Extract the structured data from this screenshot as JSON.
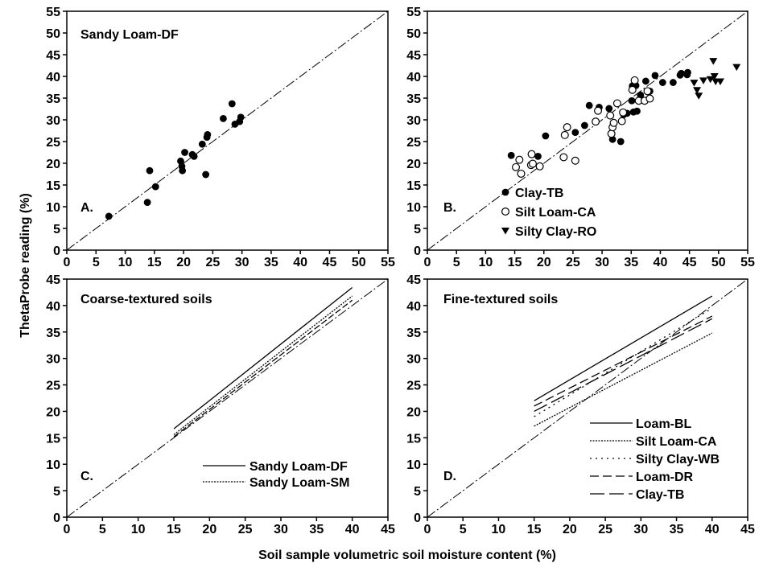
{
  "axis_labels": {
    "y": "ThetaProbe reading (%)",
    "x": "Soil sample volumetric soil moisture content (%)"
  },
  "chart_data": [
    {
      "id": "A",
      "type": "scatter",
      "title": "Sandy Loam-DF",
      "panel_label": "A.",
      "xlim": [
        0,
        55
      ],
      "ylim": [
        0,
        55
      ],
      "xticks": [
        0,
        5,
        10,
        15,
        20,
        25,
        30,
        35,
        40,
        45,
        50,
        55
      ],
      "yticks": [
        0,
        5,
        10,
        15,
        20,
        25,
        30,
        35,
        40,
        45,
        50,
        55
      ],
      "one_to_one_line": true,
      "series": [
        {
          "marker": "filled-circle",
          "points": [
            [
              7.2,
              7.8
            ],
            [
              13.8,
              11.0
            ],
            [
              14.2,
              18.3
            ],
            [
              15.2,
              14.6
            ],
            [
              19.5,
              20.5
            ],
            [
              19.7,
              19.3
            ],
            [
              19.8,
              18.3
            ],
            [
              20.2,
              22.5
            ],
            [
              21.5,
              22.0
            ],
            [
              21.8,
              21.6
            ],
            [
              23.2,
              24.4
            ],
            [
              23.8,
              17.4
            ],
            [
              24.0,
              26.0
            ],
            [
              24.1,
              26.6
            ],
            [
              26.8,
              30.3
            ],
            [
              28.3,
              33.7
            ],
            [
              28.8,
              29.0
            ],
            [
              29.6,
              29.6
            ],
            [
              29.8,
              30.6
            ]
          ]
        }
      ]
    },
    {
      "id": "B",
      "type": "scatter",
      "title": "",
      "panel_label": "B.",
      "xlim": [
        0,
        55
      ],
      "ylim": [
        0,
        55
      ],
      "xticks": [
        0,
        5,
        10,
        15,
        20,
        25,
        30,
        35,
        40,
        45,
        50,
        55
      ],
      "yticks": [
        0,
        5,
        10,
        15,
        20,
        25,
        30,
        35,
        40,
        45,
        50,
        55
      ],
      "one_to_one_line": true,
      "legend_position": "bottom-right",
      "series": [
        {
          "name": "Clay-TB",
          "marker": "filled-circle",
          "points": [
            [
              14.4,
              21.8
            ],
            [
              19.0,
              21.6
            ],
            [
              20.3,
              26.3
            ],
            [
              25.4,
              27.1
            ],
            [
              27.0,
              28.7
            ],
            [
              27.8,
              33.3
            ],
            [
              29.5,
              32.9
            ],
            [
              31.2,
              32.6
            ],
            [
              31.8,
              25.5
            ],
            [
              33.2,
              25.0
            ],
            [
              33.7,
              31.2
            ],
            [
              34.3,
              31.5
            ],
            [
              35.1,
              34.4
            ],
            [
              35.2,
              37.8
            ],
            [
              35.4,
              31.8
            ],
            [
              35.8,
              37.9
            ],
            [
              36.0,
              32.0
            ],
            [
              36.6,
              35.7
            ],
            [
              37.5,
              38.9
            ],
            [
              38.2,
              36.6
            ],
            [
              39.1,
              40.2
            ],
            [
              40.4,
              38.6
            ],
            [
              42.2,
              38.6
            ],
            [
              43.4,
              40.3
            ],
            [
              43.6,
              40.7
            ],
            [
              44.6,
              40.4
            ],
            [
              44.7,
              40.9
            ]
          ]
        },
        {
          "name": "Silt Loam-CA",
          "marker": "open-circle",
          "points": [
            [
              15.2,
              19.1
            ],
            [
              15.8,
              20.8
            ],
            [
              16.1,
              17.6
            ],
            [
              17.8,
              19.6
            ],
            [
              17.9,
              22.1
            ],
            [
              18.1,
              19.9
            ],
            [
              19.3,
              19.3
            ],
            [
              23.4,
              21.4
            ],
            [
              23.6,
              26.5
            ],
            [
              24.0,
              28.3
            ],
            [
              25.4,
              20.6
            ],
            [
              28.9,
              29.6
            ],
            [
              29.3,
              32.1
            ],
            [
              31.4,
              31.0
            ],
            [
              31.6,
              26.8
            ],
            [
              31.8,
              28.3
            ],
            [
              32.0,
              29.3
            ],
            [
              32.6,
              33.8
            ],
            [
              33.4,
              29.7
            ],
            [
              33.6,
              31.7
            ],
            [
              35.2,
              36.9
            ],
            [
              35.6,
              39.1
            ],
            [
              36.3,
              34.4
            ],
            [
              37.3,
              34.4
            ],
            [
              37.8,
              36.6
            ],
            [
              38.2,
              34.9
            ]
          ]
        },
        {
          "name": "Silty Clay-RO",
          "marker": "filled-triangle-down",
          "points": [
            [
              45.8,
              38.5
            ],
            [
              46.3,
              36.8
            ],
            [
              46.6,
              35.5
            ],
            [
              47.4,
              39.0
            ],
            [
              48.6,
              39.3
            ],
            [
              49.1,
              43.5
            ],
            [
              49.3,
              40.0
            ],
            [
              49.5,
              38.8
            ],
            [
              50.3,
              38.8
            ],
            [
              53.1,
              42.1
            ]
          ]
        }
      ]
    },
    {
      "id": "C",
      "type": "line",
      "title": "Coarse-textured soils",
      "panel_label": "C.",
      "xlim": [
        0,
        45
      ],
      "ylim": [
        0,
        45
      ],
      "xticks": [
        0,
        5,
        10,
        15,
        20,
        25,
        30,
        35,
        40,
        45
      ],
      "yticks": [
        0,
        5,
        10,
        15,
        20,
        25,
        30,
        35,
        40,
        45
      ],
      "one_to_one_line": true,
      "legend_position": "bottom-right",
      "series": [
        {
          "name": "Sandy Loam-DF",
          "style": "solid",
          "points": [
            [
              15,
              16.7
            ],
            [
              40,
              43.4
            ]
          ]
        },
        {
          "name": "Sandy Loam-SM",
          "style": "dotted",
          "points": [
            [
              15,
              15.6
            ],
            [
              40,
              41.8
            ]
          ]
        },
        {
          "name": "",
          "style": "short-dash",
          "points": [
            [
              15,
              15.2
            ],
            [
              40,
              41.0
            ]
          ]
        }
      ]
    },
    {
      "id": "D",
      "type": "line",
      "title": "Fine-textured soils",
      "panel_label": "D.",
      "xlim": [
        0,
        45
      ],
      "ylim": [
        0,
        45
      ],
      "xticks": [
        0,
        5,
        10,
        15,
        20,
        25,
        30,
        35,
        40,
        45
      ],
      "yticks": [
        0,
        5,
        10,
        15,
        20,
        25,
        30,
        35,
        40,
        45
      ],
      "one_to_one_line": true,
      "legend_position": "bottom-right",
      "series": [
        {
          "name": "Loam-BL",
          "style": "solid",
          "points": [
            [
              15,
              22.0
            ],
            [
              40,
              41.8
            ]
          ]
        },
        {
          "name": "Silt Loam-CA",
          "style": "dotted",
          "points": [
            [
              15,
              17.2
            ],
            [
              40,
              34.8
            ]
          ]
        },
        {
          "name": "Silty Clay-WB",
          "style": "sparse-dot",
          "points": [
            [
              15,
              19.0
            ],
            [
              40,
              39.5
            ]
          ]
        },
        {
          "name": "Loam-DR",
          "style": "dash",
          "points": [
            [
              15,
              21.0
            ],
            [
              40,
              38.0
            ]
          ]
        },
        {
          "name": "Clay-TB",
          "style": "long-dash",
          "points": [
            [
              15,
              20.0
            ],
            [
              40,
              37.5
            ]
          ]
        }
      ]
    }
  ]
}
